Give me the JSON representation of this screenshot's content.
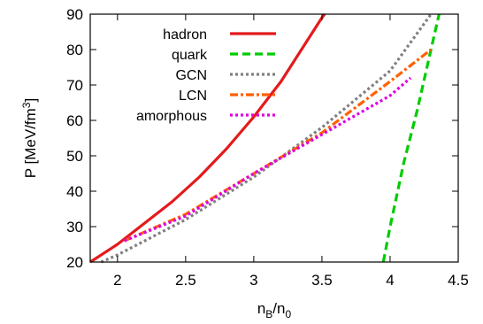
{
  "chart_data": {
    "type": "line",
    "title": "",
    "xlabel": "n_B/n_0",
    "ylabel": "P [MeV/fm^3]",
    "xlim": [
      1.8,
      4.5
    ],
    "ylim": [
      20,
      90
    ],
    "xticks": [
      {
        "value": 2,
        "label": "2"
      },
      {
        "value": 2.5,
        "label": "2.5"
      },
      {
        "value": 3,
        "label": "3"
      },
      {
        "value": 3.5,
        "label": "3.5"
      },
      {
        "value": 4,
        "label": "4"
      },
      {
        "value": 4.5,
        "label": "4.5"
      }
    ],
    "yticks": [
      {
        "value": 20,
        "label": "20"
      },
      {
        "value": 30,
        "label": "30"
      },
      {
        "value": 40,
        "label": "40"
      },
      {
        "value": 50,
        "label": "50"
      },
      {
        "value": 60,
        "label": "60"
      },
      {
        "value": 70,
        "label": "70"
      },
      {
        "value": 80,
        "label": "80"
      },
      {
        "value": 90,
        "label": "90"
      }
    ],
    "legend_position": "top-left",
    "grid": false,
    "series": [
      {
        "name": "hadron",
        "color": "#e41a1c",
        "dash": "solid",
        "x": [
          1.8,
          2.0,
          2.2,
          2.4,
          2.6,
          2.8,
          3.0,
          3.1,
          3.2,
          3.3,
          3.4,
          3.5,
          3.52
        ],
        "y": [
          20,
          25,
          31,
          37,
          44,
          52,
          61,
          66,
          71,
          77,
          83,
          89,
          90
        ]
      },
      {
        "name": "quark",
        "color": "#00cc00",
        "dash": "dashed",
        "x": [
          3.95,
          4.0,
          4.1,
          4.2,
          4.3,
          4.36
        ],
        "y": [
          20,
          30,
          48,
          63,
          80,
          90
        ]
      },
      {
        "name": "GCN",
        "color": "#808080",
        "dash": "dotted",
        "x": [
          1.88,
          2.0,
          2.5,
          3.0,
          3.5,
          4.0,
          4.3
        ],
        "y": [
          20,
          22,
          32,
          44,
          58,
          74,
          90
        ]
      },
      {
        "name": "LCN",
        "color": "#ff6000",
        "dash": "dash-dot",
        "x": [
          2.05,
          2.5,
          3.0,
          3.5,
          4.0,
          4.3
        ],
        "y": [
          26,
          33.5,
          45,
          56.5,
          71,
          80
        ]
      },
      {
        "name": "amorphous",
        "color": "#e000e0",
        "dash": "dotted",
        "x": [
          2.05,
          2.5,
          3.0,
          3.5,
          4.0,
          4.15
        ],
        "y": [
          26,
          33,
          45,
          56,
          67,
          72
        ]
      }
    ]
  }
}
